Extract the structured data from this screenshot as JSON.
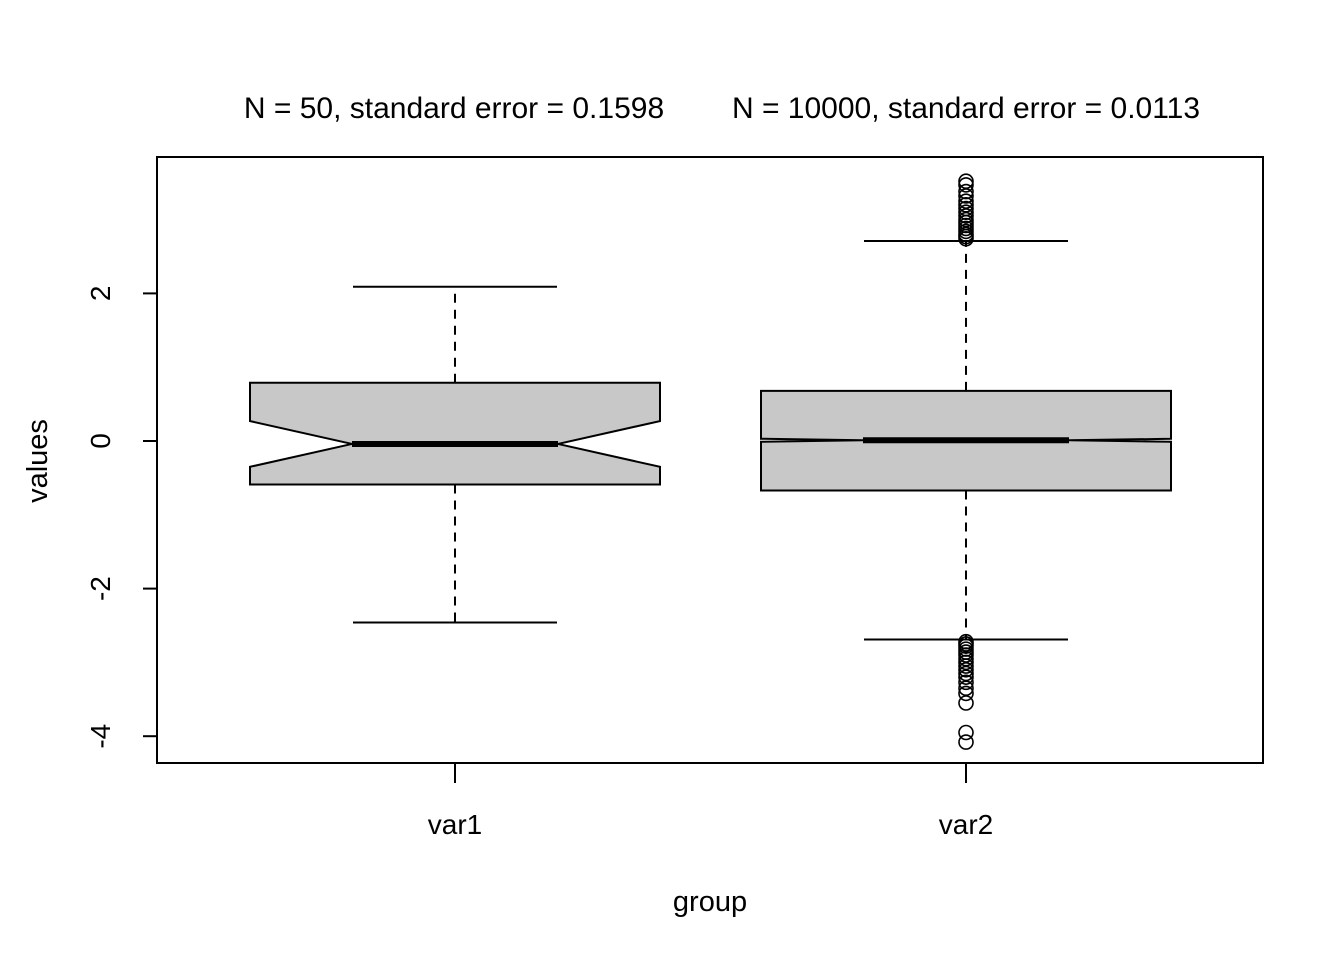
{
  "chart_data": {
    "type": "boxplot",
    "titles": [
      "N = 50, standard error = 0.1598",
      "N = 10000, standard error = 0.0113"
    ],
    "xlabel": "group",
    "ylabel": "values",
    "ylim": [
      -4.25,
      3.75
    ],
    "yticks": [
      -4,
      -2,
      0,
      2
    ],
    "ytick_labels": [
      "-4",
      "-2",
      "0",
      "2"
    ],
    "notch": true,
    "box_color": "#c8c8c8",
    "groups": [
      {
        "label": "var1",
        "whisker_low": -2.46,
        "q1": -0.59,
        "notch_low": -0.35,
        "median": -0.04,
        "notch_high": 0.27,
        "q3": 0.79,
        "whisker_high": 2.09,
        "outliers": []
      },
      {
        "label": "var2",
        "whisker_low": -2.69,
        "q1": -0.67,
        "notch_low": -0.01,
        "median": 0.01,
        "notch_high": 0.03,
        "q3": 0.68,
        "whisker_high": 2.71,
        "outliers": [
          3.52,
          3.47,
          3.38,
          3.32,
          3.25,
          3.2,
          3.15,
          3.1,
          3.05,
          3.0,
          2.96,
          2.92,
          2.88,
          2.84,
          2.8,
          2.77,
          2.74,
          -2.72,
          -2.75,
          -2.78,
          -2.82,
          -2.86,
          -2.9,
          -2.95,
          -3.0,
          -3.05,
          -3.1,
          -3.15,
          -3.2,
          -3.27,
          -3.35,
          -3.42,
          -3.55,
          -3.95,
          -4.08
        ]
      }
    ]
  }
}
